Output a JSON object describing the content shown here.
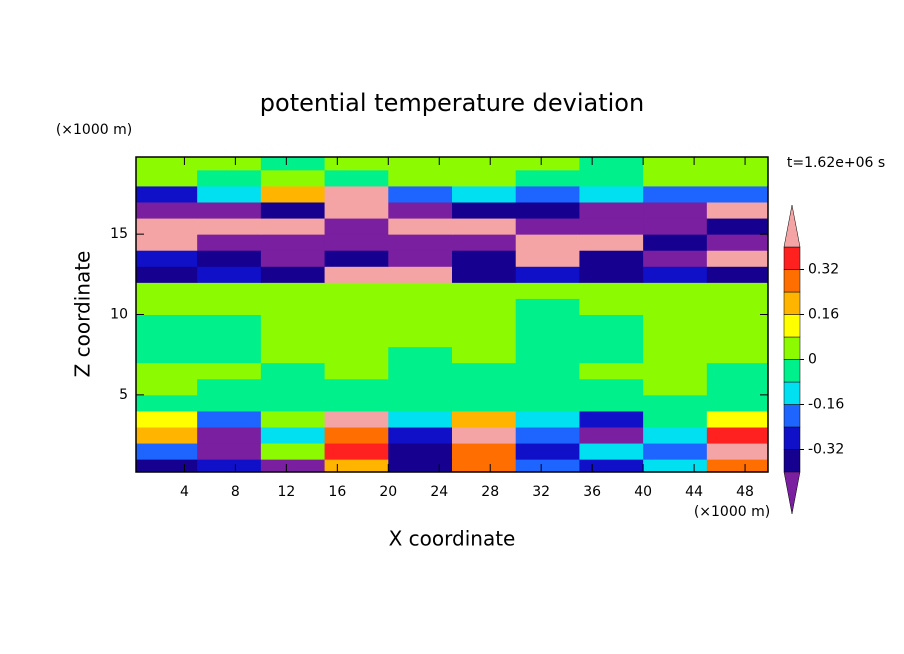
{
  "chart_data": {
    "type": "contour",
    "title": "potential temperature deviation",
    "xlabel": "X coordinate",
    "ylabel": "Z coordinate",
    "xunit": "(×1000 m)",
    "yunit": "(×1000 m)",
    "annotation": "t=1.62e+06 s",
    "xlim": [
      0.2,
      49.8
    ],
    "ylim": [
      0.2,
      19.8
    ],
    "xticks": [
      4,
      8,
      12,
      16,
      20,
      24,
      28,
      32,
      36,
      40,
      44,
      48
    ],
    "yticks": [
      5,
      10,
      15
    ],
    "levels": [
      -0.4,
      -0.32,
      -0.24,
      -0.16,
      -0.08,
      0,
      0.08,
      0.16,
      0.24,
      0.32,
      0.4
    ],
    "colors": [
      "#7a1fa0",
      "#16008f",
      "#1010c8",
      "#1e64ff",
      "#00e0f0",
      "#00f08c",
      "#8cfa00",
      "#ffff00",
      "#ffb400",
      "#ff6e00",
      "#ff2020",
      "#f4a4a4"
    ],
    "colorbar_ticks": [
      -0.32,
      -0.16,
      0,
      0.16,
      0.32
    ],
    "x": [
      2.5,
      7.5,
      12.5,
      17.5,
      22.5,
      27.5,
      32.5,
      37.5,
      42.5,
      47.5
    ],
    "z_levels": [
      0.5,
      1.5,
      2.5,
      3.5,
      4.5,
      5.5,
      6.5,
      7.5,
      8.5,
      9.5,
      10.5,
      11.5,
      12.5,
      13.5,
      14.5,
      15.5,
      16.5,
      17.5,
      18.5,
      19.5
    ],
    "z": [
      [
        -0.36,
        -0.28,
        -0.44,
        0.2,
        -0.36,
        0.28,
        -0.2,
        -0.28,
        -0.12,
        0.28
      ],
      [
        -0.2,
        -0.44,
        0.04,
        0.36,
        -0.36,
        0.28,
        -0.28,
        -0.12,
        -0.2,
        0.44
      ],
      [
        0.2,
        -0.44,
        -0.12,
        0.28,
        -0.28,
        0.44,
        -0.2,
        -0.44,
        -0.12,
        0.36
      ],
      [
        0.12,
        -0.2,
        0.04,
        0.44,
        -0.12,
        0.2,
        -0.12,
        -0.28,
        -0.04,
        0.12
      ],
      [
        -0.04,
        -0.04,
        -0.04,
        -0.04,
        -0.04,
        -0.04,
        -0.04,
        -0.04,
        -0.04,
        -0.04
      ],
      [
        0.04,
        -0.04,
        -0.04,
        -0.04,
        -0.04,
        -0.04,
        -0.04,
        -0.04,
        0.04,
        -0.04
      ],
      [
        0.04,
        0.04,
        -0.04,
        0.04,
        -0.04,
        -0.04,
        -0.04,
        0.04,
        0.04,
        -0.04
      ],
      [
        -0.04,
        -0.04,
        0.04,
        0.04,
        -0.04,
        0.04,
        -0.04,
        -0.04,
        0.04,
        0.04
      ],
      [
        -0.04,
        -0.04,
        0.04,
        0.04,
        0.04,
        0.04,
        -0.04,
        -0.04,
        0.04,
        0.04
      ],
      [
        -0.04,
        -0.04,
        0.04,
        0.04,
        0.04,
        0.04,
        -0.04,
        -0.04,
        0.04,
        0.04
      ],
      [
        0.04,
        0.04,
        0.04,
        0.04,
        0.04,
        0.04,
        -0.04,
        0.04,
        0.04,
        0.04
      ],
      [
        0.04,
        0.04,
        0.04,
        0.04,
        0.04,
        0.04,
        0.04,
        0.04,
        0.04,
        0.04
      ],
      [
        -0.36,
        -0.28,
        -0.36,
        0.44,
        0.44,
        -0.36,
        -0.28,
        -0.36,
        -0.28,
        -0.36
      ],
      [
        -0.28,
        -0.36,
        -0.44,
        -0.36,
        -0.44,
        -0.36,
        0.44,
        -0.36,
        -0.44,
        0.44
      ],
      [
        0.44,
        -0.44,
        -0.44,
        -0.44,
        -0.44,
        -0.44,
        0.44,
        0.44,
        -0.36,
        -0.44
      ],
      [
        0.44,
        0.44,
        0.44,
        -0.44,
        0.44,
        0.44,
        -0.44,
        -0.44,
        -0.44,
        -0.36
      ],
      [
        -0.44,
        -0.44,
        -0.36,
        0.44,
        -0.44,
        -0.36,
        -0.36,
        -0.44,
        -0.44,
        0.44
      ],
      [
        -0.28,
        -0.12,
        0.2,
        0.44,
        -0.2,
        -0.12,
        -0.2,
        -0.12,
        -0.2,
        -0.2
      ],
      [
        0.04,
        -0.04,
        0.04,
        -0.04,
        0.04,
        0.04,
        -0.04,
        -0.04,
        0.04,
        0.04
      ],
      [
        0.04,
        0.04,
        -0.04,
        0.04,
        0.04,
        0.04,
        0.04,
        -0.04,
        0.04,
        0.04
      ]
    ]
  }
}
